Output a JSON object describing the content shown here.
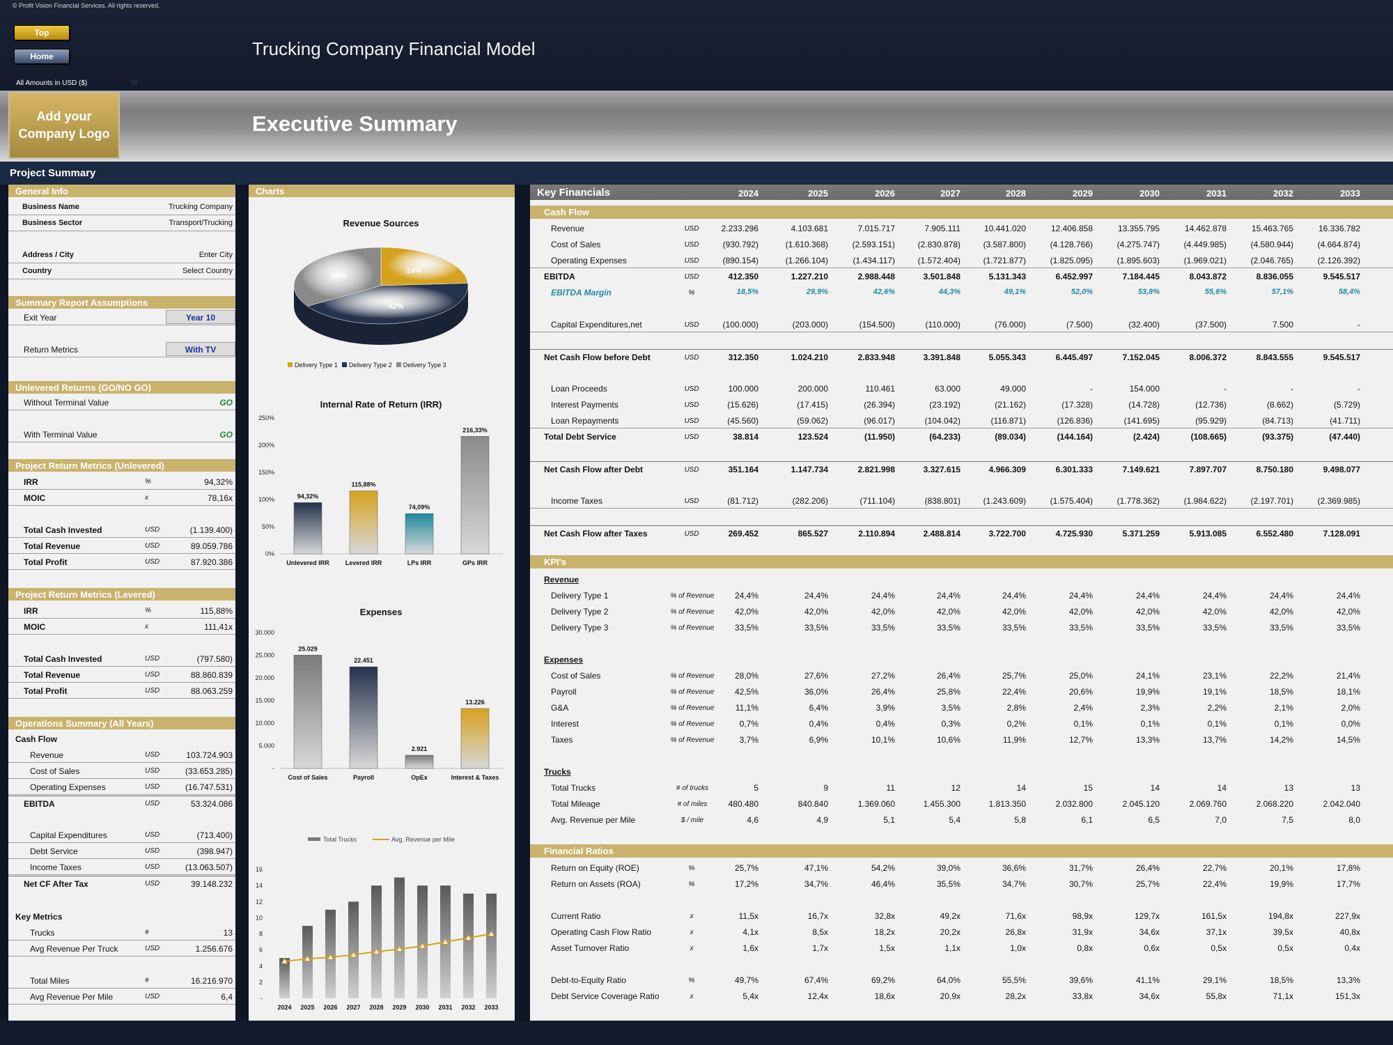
{
  "copyright": "© Profit Vision Financial Services. All rights reserved.",
  "nav": {
    "top": "Top",
    "home": "Home"
  },
  "model_title": "Trucking Company Financial Model",
  "amounts_label": "All Amounts in  USD ($)",
  "amounts_extra": "20",
  "logo_text": "Add your Company Logo",
  "exec_title": "Executive Summary",
  "project_summary": "Project Summary",
  "left": {
    "general_info": "General Info",
    "business_name": {
      "label": "Business Name",
      "value": "Trucking Company"
    },
    "business_sector": {
      "label": "Business Sector",
      "value": "Transport/Trucking"
    },
    "address": {
      "label": "Address / City",
      "value": "Enter City"
    },
    "country": {
      "label": "Country",
      "value": "Select Country"
    },
    "assumptions": "Summary  Report Assumptions",
    "exit_year": {
      "label": "Exit Year",
      "value": "Year 10"
    },
    "return_metrics": {
      "label": "Return Metrics",
      "value": "With TV"
    },
    "unlevered_returns": "Unlevered Returns (GO/NO GO)",
    "without_tv": {
      "label": "Without Terminal Value",
      "value": "GO"
    },
    "with_tv": {
      "label": "With Terminal Value",
      "value": "GO"
    },
    "prm_unlevered": "Project Return Metrics (Unlevered)",
    "un_irr": {
      "label": "IRR",
      "unit": "%",
      "value": "94,32%"
    },
    "un_moic": {
      "label": "MOIC",
      "unit": "x",
      "value": "78,16x"
    },
    "un_invested": {
      "label": "Total Cash Invested",
      "unit": "USD",
      "value": "(1.139.400)"
    },
    "un_revenue": {
      "label": "Total Revenue",
      "unit": "USD",
      "value": "89.059.786"
    },
    "un_profit": {
      "label": "Total Profit",
      "unit": "USD",
      "value": "87.920.386"
    },
    "prm_levered": "Project Return Metrics (Levered)",
    "lv_irr": {
      "label": "IRR",
      "unit": "%",
      "value": "115,88%"
    },
    "lv_moic": {
      "label": "MOIC",
      "unit": "x",
      "value": "111,41x"
    },
    "lv_invested": {
      "label": "Total Cash Invested",
      "unit": "USD",
      "value": "(797.580)"
    },
    "lv_revenue": {
      "label": "Total Revenue",
      "unit": "USD",
      "value": "88.860.839"
    },
    "lv_profit": {
      "label": "Total Profit",
      "unit": "USD",
      "value": "88.063.259"
    },
    "ops_summary": "Operations Summary (All Years)",
    "cash_flow": "Cash Flow",
    "ops_revenue": {
      "label": "Revenue",
      "unit": "USD",
      "value": "103.724.903"
    },
    "ops_cos": {
      "label": "Cost of Sales",
      "unit": "USD",
      "value": "(33.653.285)"
    },
    "ops_opex": {
      "label": "Operating Expenses",
      "unit": "USD",
      "value": "(16.747.531)"
    },
    "ops_ebitda": {
      "label": "EBITDA",
      "unit": "USD",
      "value": "53.324.086"
    },
    "ops_capex": {
      "label": "Capital Expenditures",
      "unit": "USD",
      "value": "(713.400)"
    },
    "ops_debt": {
      "label": "Debt Service",
      "unit": "USD",
      "value": "(398.947)"
    },
    "ops_tax": {
      "label": "Income Taxes",
      "unit": "USD",
      "value": "(13.063.507)"
    },
    "ops_netcf": {
      "label": "Net CF After Tax",
      "unit": "USD",
      "value": "39.148.232"
    },
    "key_metrics": "Key Metrics",
    "km_trucks": {
      "label": "Trucks",
      "unit": "#",
      "value": "13"
    },
    "km_avgrev": {
      "label": "Avg Revenue Per Truck",
      "unit": "USD",
      "value": "1.256.676"
    },
    "km_miles": {
      "label": "Total Miles",
      "unit": "#",
      "value": "16.216.970"
    },
    "km_rpm": {
      "label": "Avg Revenue Per Mile",
      "unit": "USD",
      "value": "6,4"
    }
  },
  "charts_header": "Charts",
  "chart_data": [
    {
      "type": "pie",
      "title": "Revenue Sources",
      "categories": [
        "Delivery Type 1",
        "Delivery Type 2",
        "Delivery Type 3"
      ],
      "values": [
        24,
        42,
        34
      ],
      "labels": [
        "24%",
        "42%",
        "34%"
      ],
      "colors": [
        "#d6a21e",
        "#25324b",
        "#8a8a8a"
      ],
      "legend": "bottom"
    },
    {
      "type": "bar",
      "title": "Internal Rate of Return (IRR)",
      "categories": [
        "Unlevered IRR",
        "Levered IRR",
        "LPs IRR",
        "GPs IRR"
      ],
      "values": [
        94.32,
        115.88,
        74.09,
        216.33
      ],
      "labels": [
        "94,32%",
        "115,88%",
        "74,09%",
        "216,33%"
      ],
      "yticks": [
        "0%",
        "50%",
        "100%",
        "150%",
        "200%",
        "250%"
      ],
      "ylim": [
        0,
        250
      ],
      "colors": [
        "#25324b",
        "#d6a21e",
        "#1f8a9e",
        "#8a8a8a"
      ]
    },
    {
      "type": "bar",
      "title": "Expenses",
      "categories": [
        "Cost of Sales",
        "Payroll",
        "OpEx",
        "Interest & Taxes"
      ],
      "values": [
        25029,
        22451,
        2921,
        13226
      ],
      "labels": [
        "25.029",
        "22.451",
        "2.921",
        "13.226"
      ],
      "yticks": [
        "-",
        "5.000",
        "10.000",
        "15.000",
        "20.000",
        "25.000",
        "30.000"
      ],
      "ylim": [
        0,
        30000
      ],
      "colors": [
        "#7a7a7a",
        "#25324b",
        "#7a7a7a",
        "#d6a21e"
      ]
    },
    {
      "type": "bar",
      "categories": [
        "2024",
        "2025",
        "2026",
        "2027",
        "2028",
        "2029",
        "2030",
        "2031",
        "2032",
        "2033"
      ],
      "series": [
        {
          "name": "Total Trucks",
          "values": [
            5,
            9,
            11,
            12,
            14,
            15,
            14,
            14,
            13,
            13
          ]
        },
        {
          "name": "Avg. Revenue per Mile",
          "values": [
            4.6,
            4.9,
            5.1,
            5.4,
            5.8,
            6.1,
            6.5,
            7.0,
            7.5,
            8.0
          ]
        }
      ],
      "yticks": [
        "-",
        "2",
        "4",
        "6",
        "8",
        "10",
        "12",
        "14",
        "16"
      ],
      "ylim": [
        0,
        16
      ],
      "legend": "top"
    }
  ],
  "kf": {
    "title": "Key Financials",
    "years": [
      "2024",
      "2025",
      "2026",
      "2027",
      "2028",
      "2029",
      "2030",
      "2031",
      "2032",
      "2033"
    ],
    "cash_flow": "Cash Flow",
    "kpis": "KPI's",
    "ratios": "Financial Ratios",
    "rows": {
      "revenue": {
        "label": "Revenue",
        "unit": "USD",
        "v": [
          "2.233.296",
          "4.103.681",
          "7.015.717",
          "7.905.111",
          "10.441.020",
          "12.406.858",
          "13.355.795",
          "14.462.878",
          "15.463.765",
          "16.336.782"
        ]
      },
      "cos": {
        "label": "Cost of Sales",
        "unit": "USD",
        "v": [
          "(930.792)",
          "(1.610.368)",
          "(2.593.151)",
          "(2.830.878)",
          "(3.587.800)",
          "(4.128.766)",
          "(4.275.747)",
          "(4.449.985)",
          "(4.580.944)",
          "(4.664.874)"
        ]
      },
      "opex": {
        "label": "Operating Expenses",
        "unit": "USD",
        "v": [
          "(890.154)",
          "(1.266.104)",
          "(1.434.117)",
          "(1.572.404)",
          "(1.721.877)",
          "(1.825.095)",
          "(1.895.603)",
          "(1.969.021)",
          "(2.046.765)",
          "(2.126.392)"
        ]
      },
      "ebitda": {
        "label": "EBITDA",
        "unit": "USD",
        "v": [
          "412.350",
          "1.227.210",
          "2.988.448",
          "3.501.848",
          "5.131.343",
          "6.452.997",
          "7.184.445",
          "8.043.872",
          "8.836.055",
          "9.545.517"
        ]
      },
      "margin": {
        "label": "EBITDA Margin",
        "unit": "%",
        "v": [
          "18,5%",
          "29,9%",
          "42,6%",
          "44,3%",
          "49,1%",
          "52,0%",
          "53,8%",
          "55,6%",
          "57,1%",
          "58,4%"
        ]
      },
      "capex": {
        "label": "Capital Expenditures,net",
        "unit": "USD",
        "v": [
          "(100.000)",
          "(203.000)",
          "(154.500)",
          "(110.000)",
          "(76.000)",
          "(7.500)",
          "(32.400)",
          "(37.500)",
          "7.500",
          "-"
        ]
      },
      "ncf_before": {
        "label": "Net Cash Flow before Debt",
        "unit": "USD",
        "v": [
          "312.350",
          "1.024.210",
          "2.833.948",
          "3.391.848",
          "5.055.343",
          "6.445.497",
          "7.152.045",
          "8.006.372",
          "8.843.555",
          "9.545.517"
        ]
      },
      "loan": {
        "label": "Loan Proceeds",
        "unit": "USD",
        "v": [
          "100.000",
          "200.000",
          "110.461",
          "63.000",
          "49.000",
          "-",
          "154.000",
          "-",
          "-",
          "-"
        ]
      },
      "interest": {
        "label": "Interest Payments",
        "unit": "USD",
        "v": [
          "(15.626)",
          "(17.415)",
          "(26.394)",
          "(23.192)",
          "(21.162)",
          "(17.328)",
          "(14.728)",
          "(12.736)",
          "(8.662)",
          "(5.729)"
        ]
      },
      "repay": {
        "label": "Loan Repayments",
        "unit": "USD",
        "v": [
          "(45.560)",
          "(59.062)",
          "(96.017)",
          "(104.042)",
          "(116.871)",
          "(126.836)",
          "(141.695)",
          "(95.929)",
          "(84.713)",
          "(41.711)"
        ]
      },
      "debt_service": {
        "label": "Total Debt Service",
        "unit": "USD",
        "v": [
          "38.814",
          "123.524",
          "(11.950)",
          "(64.233)",
          "(89.034)",
          "(144.164)",
          "(2.424)",
          "(108.665)",
          "(93.375)",
          "(47.440)"
        ]
      },
      "ncf_after": {
        "label": "Net Cash Flow after Debt",
        "unit": "USD",
        "v": [
          "351.164",
          "1.147.734",
          "2.821.998",
          "3.327.615",
          "4.966.309",
          "6.301.333",
          "7.149.621",
          "7.897.707",
          "8.750.180",
          "9.498.077"
        ]
      },
      "taxes": {
        "label": "Income Taxes",
        "unit": "USD",
        "v": [
          "(81.712)",
          "(282.206)",
          "(711.104)",
          "(838.801)",
          "(1.243.609)",
          "(1.575.404)",
          "(1.778.362)",
          "(1.984.622)",
          "(2.197.701)",
          "(2.369.985)"
        ]
      },
      "ncf_taxes": {
        "label": "Net Cash Flow after Taxes",
        "unit": "USD",
        "v": [
          "269.452",
          "865.527",
          "2.110.894",
          "2.488.814",
          "3.722.700",
          "4.725.930",
          "5.371.259",
          "5.913.085",
          "6.552.480",
          "7.128.091"
        ]
      },
      "kpi_rev": {
        "label": "Revenue"
      },
      "dt1": {
        "label": "Delivery Type 1",
        "unit": "% of Revenue",
        "v": [
          "24,4%",
          "24,4%",
          "24,4%",
          "24,4%",
          "24,4%",
          "24,4%",
          "24,4%",
          "24,4%",
          "24,4%",
          "24,4%"
        ]
      },
      "dt2": {
        "label": "Delivery Type 2",
        "unit": "% of Revenue",
        "v": [
          "42,0%",
          "42,0%",
          "42,0%",
          "42,0%",
          "42,0%",
          "42,0%",
          "42,0%",
          "42,0%",
          "42,0%",
          "42,0%"
        ]
      },
      "dt3": {
        "label": "Delivery Type 3",
        "unit": "% of Revenue",
        "v": [
          "33,5%",
          "33,5%",
          "33,5%",
          "33,5%",
          "33,5%",
          "33,5%",
          "33,5%",
          "33,5%",
          "33,5%",
          "33,5%"
        ]
      },
      "kpi_exp": {
        "label": "Expenses"
      },
      "e_cos": {
        "label": "Cost of Sales",
        "unit": "% of Revenue",
        "v": [
          "28,0%",
          "27,6%",
          "27,2%",
          "26,4%",
          "25,7%",
          "25,0%",
          "24,1%",
          "23,1%",
          "22,2%",
          "21,4%"
        ]
      },
      "e_pay": {
        "label": "Payroll",
        "unit": "% of Revenue",
        "v": [
          "42,5%",
          "36,0%",
          "26,4%",
          "25,8%",
          "22,4%",
          "20,6%",
          "19,9%",
          "19,1%",
          "18,5%",
          "18,1%"
        ]
      },
      "e_ga": {
        "label": "G&A",
        "unit": "% of Revenue",
        "v": [
          "11,1%",
          "6,4%",
          "3,9%",
          "3,5%",
          "2,8%",
          "2,4%",
          "2,3%",
          "2,2%",
          "2,1%",
          "2,0%"
        ]
      },
      "e_int": {
        "label": "Interest",
        "unit": "% of Revenue",
        "v": [
          "0,7%",
          "0,4%",
          "0,4%",
          "0,3%",
          "0,2%",
          "0,1%",
          "0,1%",
          "0,1%",
          "0,1%",
          "0,0%"
        ]
      },
      "e_tax": {
        "label": "Taxes",
        "unit": "% of Revenue",
        "v": [
          "3,7%",
          "6,9%",
          "10,1%",
          "10,6%",
          "11,9%",
          "12,7%",
          "13,3%",
          "13,7%",
          "14,2%",
          "14,5%"
        ]
      },
      "kpi_trucks": {
        "label": "Trucks"
      },
      "t_trucks": {
        "label": "Total Trucks",
        "unit": "# of trucks",
        "v": [
          "5",
          "9",
          "11",
          "12",
          "14",
          "15",
          "14",
          "14",
          "13",
          "13"
        ]
      },
      "t_miles": {
        "label": "Total Mileage",
        "unit": "# of miles",
        "v": [
          "480.480",
          "840.840",
          "1.369.060",
          "1.455.300",
          "1.813.350",
          "2.032.800",
          "2.045.120",
          "2.069.760",
          "2.068.220",
          "2.042.040"
        ]
      },
      "t_rpm": {
        "label": "Avg. Revenue per Mile",
        "unit": "$ / mile",
        "v": [
          "4,6",
          "4,9",
          "5,1",
          "5,4",
          "5,8",
          "6,1",
          "6,5",
          "7,0",
          "7,5",
          "8,0"
        ]
      },
      "roe": {
        "label": "Return on Equity (ROE)",
        "unit": "%",
        "v": [
          "25,7%",
          "47,1%",
          "54,2%",
          "39,0%",
          "36,6%",
          "31,7%",
          "26,4%",
          "22,7%",
          "20,1%",
          "17,8%"
        ]
      },
      "roa": {
        "label": "Return on Assets (ROA)",
        "unit": "%",
        "v": [
          "17,2%",
          "34,7%",
          "46,4%",
          "35,5%",
          "34,7%",
          "30,7%",
          "25,7%",
          "22,4%",
          "19,9%",
          "17,7%"
        ]
      },
      "current": {
        "label": "Current Ratio",
        "unit": "x",
        "v": [
          "11,5x",
          "16,7x",
          "32,8x",
          "49,2x",
          "71,6x",
          "98,9x",
          "129,7x",
          "161,5x",
          "194,8x",
          "227,9x"
        ]
      },
      "ocf": {
        "label": "Operating Cash Flow Ratio",
        "unit": "x",
        "v": [
          "4,1x",
          "8,5x",
          "18,2x",
          "20,2x",
          "26,8x",
          "31,9x",
          "34,6x",
          "37,1x",
          "39,5x",
          "40,8x"
        ]
      },
      "turnover": {
        "label": "Asset Turnover Ratio",
        "unit": "x",
        "v": [
          "1,6x",
          "1,7x",
          "1,5x",
          "1,1x",
          "1,0x",
          "0,8x",
          "0,6x",
          "0,5x",
          "0,5x",
          "0,4x"
        ]
      },
      "de": {
        "label": "Debt-to-Equity Ratio",
        "unit": "%",
        "v": [
          "49,7%",
          "67,4%",
          "69,2%",
          "64,0%",
          "55,5%",
          "39,6%",
          "41,1%",
          "29,1%",
          "18,5%",
          "13,3%"
        ]
      },
      "dscr": {
        "label": "Debt Service Coverage Ratio",
        "unit": "x",
        "v": [
          "5,4x",
          "12,4x",
          "18,6x",
          "20,9x",
          "28,2x",
          "33,8x",
          "34,6x",
          "55,8x",
          "71,1x",
          "151,3x"
        ]
      }
    }
  }
}
